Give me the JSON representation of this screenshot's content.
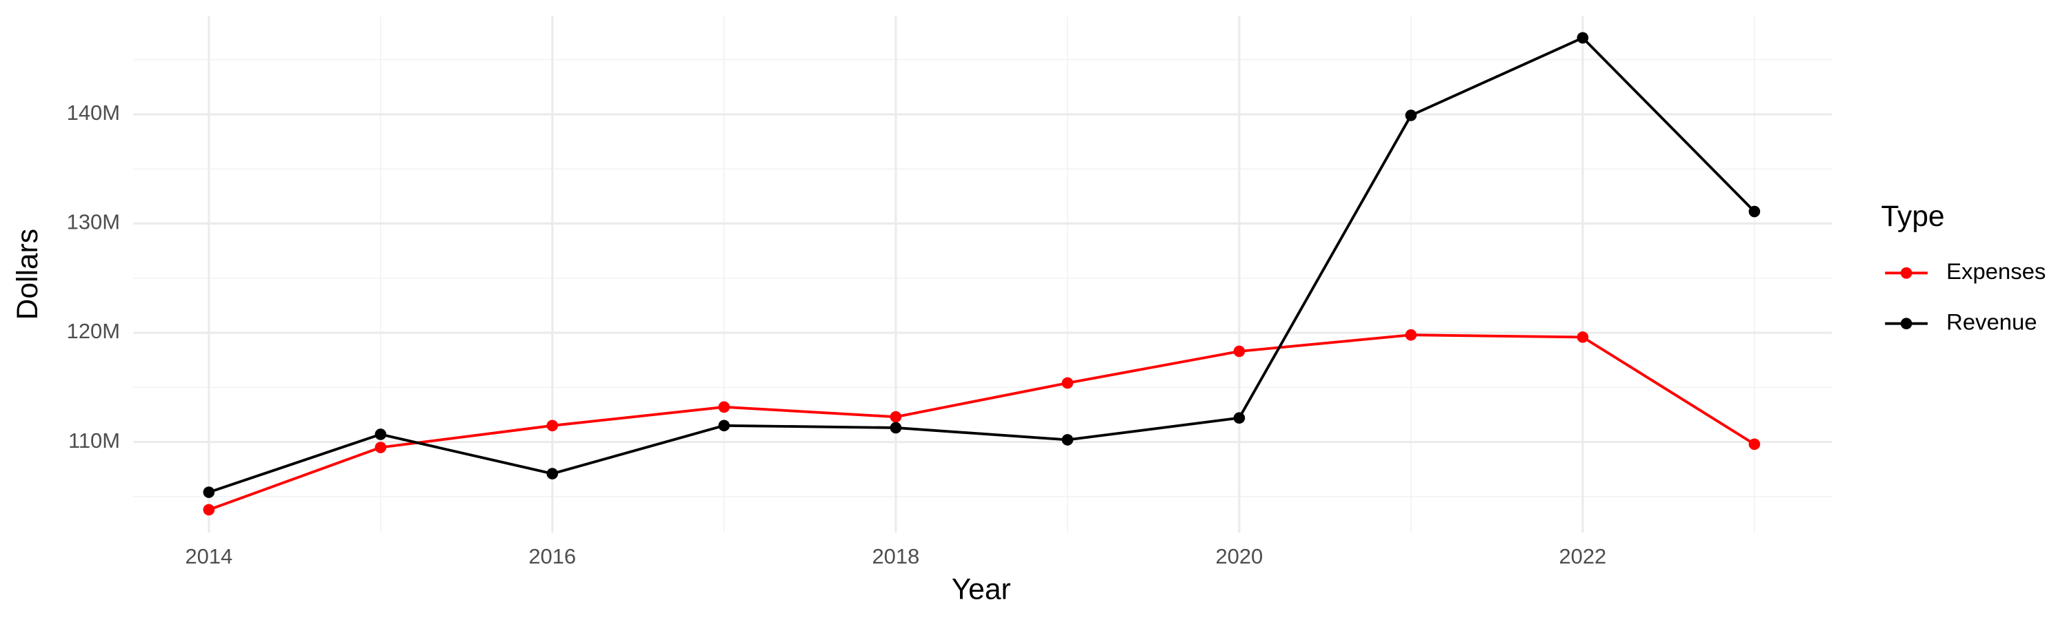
{
  "chart_data": {
    "type": "line",
    "x_label": "Year",
    "y_label": "Dollars",
    "legend_title": "Type",
    "x": [
      2014,
      2015,
      2016,
      2017,
      2018,
      2019,
      2020,
      2021,
      2022,
      2023
    ],
    "series": [
      {
        "name": "Expenses",
        "color": "#ff0000",
        "values": [
          103800000,
          109500000,
          111500000,
          113200000,
          112300000,
          115400000,
          118300000,
          119800000,
          119600000,
          109800000
        ]
      },
      {
        "name": "Revenue",
        "color": "#000000",
        "values": [
          105400000,
          110700000,
          107100000,
          111500000,
          111300000,
          110200000,
          112200000,
          139900000,
          147000000,
          131100000
        ]
      }
    ],
    "xlim": [
      2013.56,
      2023.45
    ],
    "xticks": [
      2014,
      2016,
      2018,
      2020,
      2022
    ],
    "ylim": [
      101700000,
      149000000
    ],
    "yticks": [
      {
        "value": 110000000,
        "label": "110M"
      },
      {
        "value": 120000000,
        "label": "120M"
      },
      {
        "value": 130000000,
        "label": "130M"
      },
      {
        "value": 140000000,
        "label": "140M"
      }
    ],
    "grid": true,
    "legend": "right"
  }
}
